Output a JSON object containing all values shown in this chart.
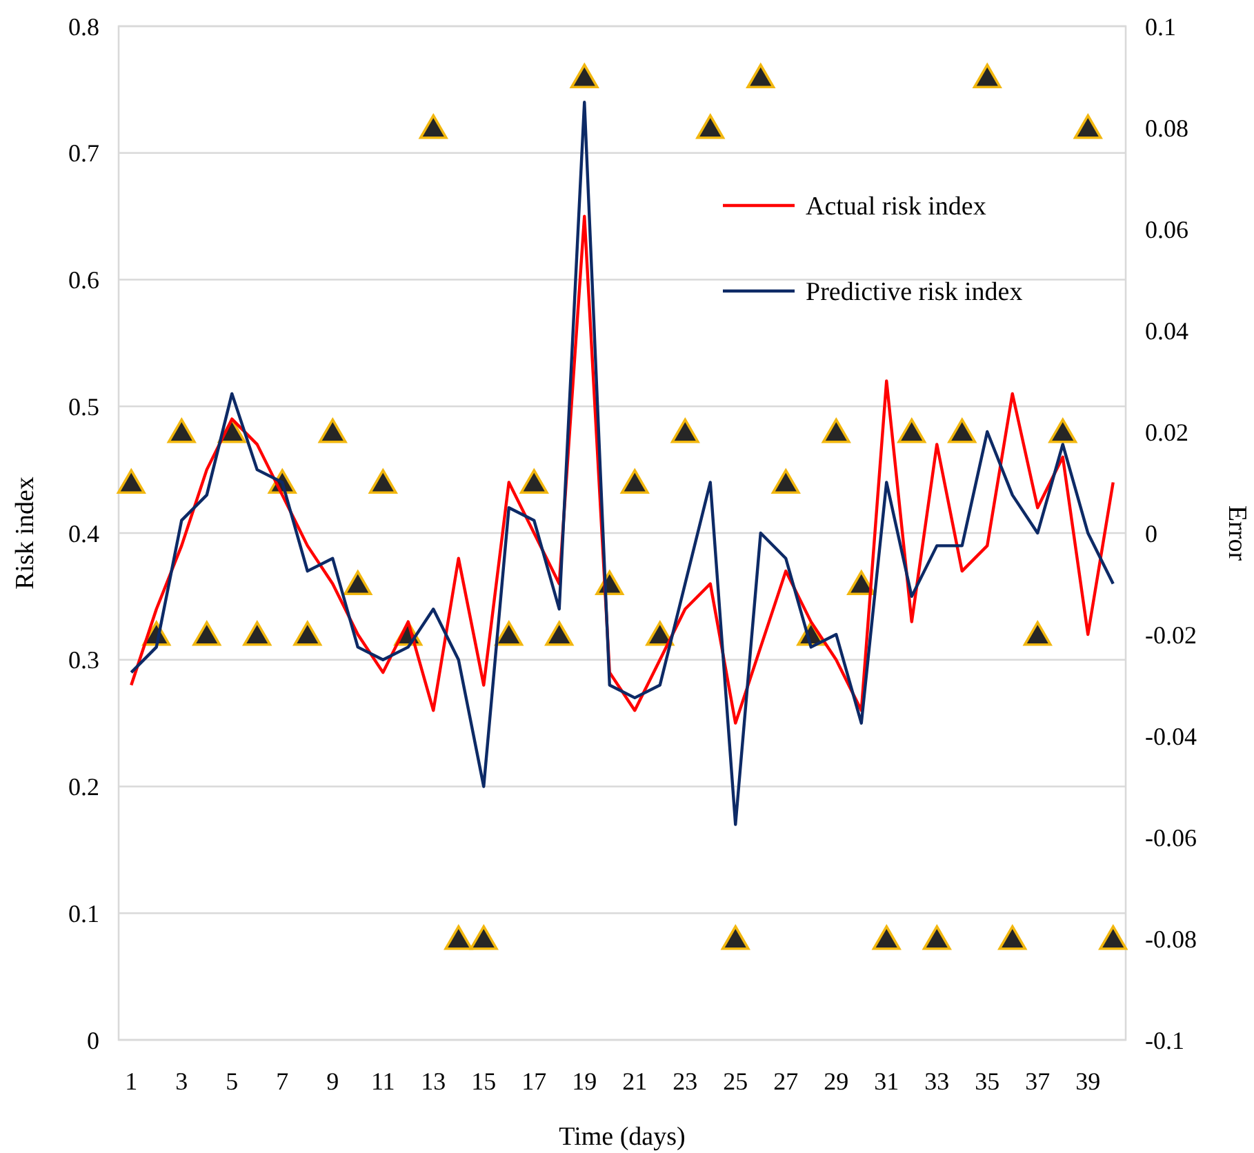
{
  "chart_data": {
    "type": "line",
    "xlabel": "Time (days)",
    "ylabel": "Risk index",
    "y2label": "Error",
    "x": [
      1,
      2,
      3,
      4,
      5,
      6,
      7,
      8,
      9,
      10,
      11,
      12,
      13,
      14,
      15,
      16,
      17,
      18,
      19,
      20,
      21,
      22,
      23,
      24,
      25,
      26,
      27,
      28,
      29,
      30,
      31,
      32,
      33,
      34,
      35,
      36,
      37,
      38,
      39,
      40
    ],
    "xlim": [
      0.5,
      40.5
    ],
    "xticks": [
      1,
      3,
      5,
      7,
      9,
      11,
      13,
      15,
      17,
      19,
      21,
      23,
      25,
      27,
      29,
      31,
      33,
      35,
      37,
      39
    ],
    "ylim": [
      0,
      0.8
    ],
    "yticks": [
      0,
      0.1,
      0.2,
      0.3,
      0.4,
      0.5,
      0.6,
      0.7,
      0.8
    ],
    "y2lim": [
      -0.1,
      0.1
    ],
    "y2ticks": [
      -0.1,
      -0.08,
      -0.06,
      -0.04,
      -0.02,
      0,
      0.02,
      0.04,
      0.06,
      0.08,
      0.1
    ],
    "grid": "y",
    "legend": "top right",
    "series": [
      {
        "type": "scatter",
        "axis": "y2",
        "color": "#262626",
        "marker": "triangle",
        "values": [
          0.01,
          -0.02,
          0.02,
          -0.02,
          0.02,
          -0.02,
          0.01,
          -0.02,
          0.02,
          -0.01,
          0.01,
          -0.02,
          0.08,
          -0.08,
          -0.08,
          -0.02,
          0.01,
          -0.02,
          0.09,
          -0.01,
          0.01,
          -0.02,
          0.02,
          0.08,
          -0.08,
          0.09,
          0.01,
          -0.02,
          0.02,
          -0.01,
          -0.08,
          0.02,
          -0.08,
          0.02,
          0.09,
          -0.08,
          -0.02,
          0.02,
          0.08,
          -0.08
        ]
      },
      {
        "name": "Actual risk index",
        "color": "#ff0000",
        "values": [
          0.28,
          0.34,
          0.39,
          0.45,
          0.49,
          0.47,
          0.43,
          0.39,
          0.36,
          0.32,
          0.29,
          0.33,
          0.26,
          0.38,
          0.28,
          0.44,
          0.4,
          0.36,
          0.65,
          0.29,
          0.26,
          0.3,
          0.34,
          0.36,
          0.25,
          0.31,
          0.37,
          0.33,
          0.3,
          0.26,
          0.52,
          0.33,
          0.47,
          0.37,
          0.39,
          0.51,
          0.42,
          0.46,
          0.32,
          0.44
        ]
      },
      {
        "name": "Predictive risk index",
        "color": "#0d2a66",
        "values": [
          0.29,
          0.31,
          0.41,
          0.43,
          0.51,
          0.45,
          0.44,
          0.37,
          0.38,
          0.31,
          0.3,
          0.31,
          0.34,
          0.3,
          0.2,
          0.42,
          0.41,
          0.34,
          0.74,
          0.28,
          0.27,
          0.28,
          0.36,
          0.44,
          0.17,
          0.4,
          0.38,
          0.31,
          0.32,
          0.25,
          0.44,
          0.35,
          0.39,
          0.39,
          0.48,
          0.43,
          0.4,
          0.47,
          0.4,
          0.36
        ]
      }
    ]
  }
}
